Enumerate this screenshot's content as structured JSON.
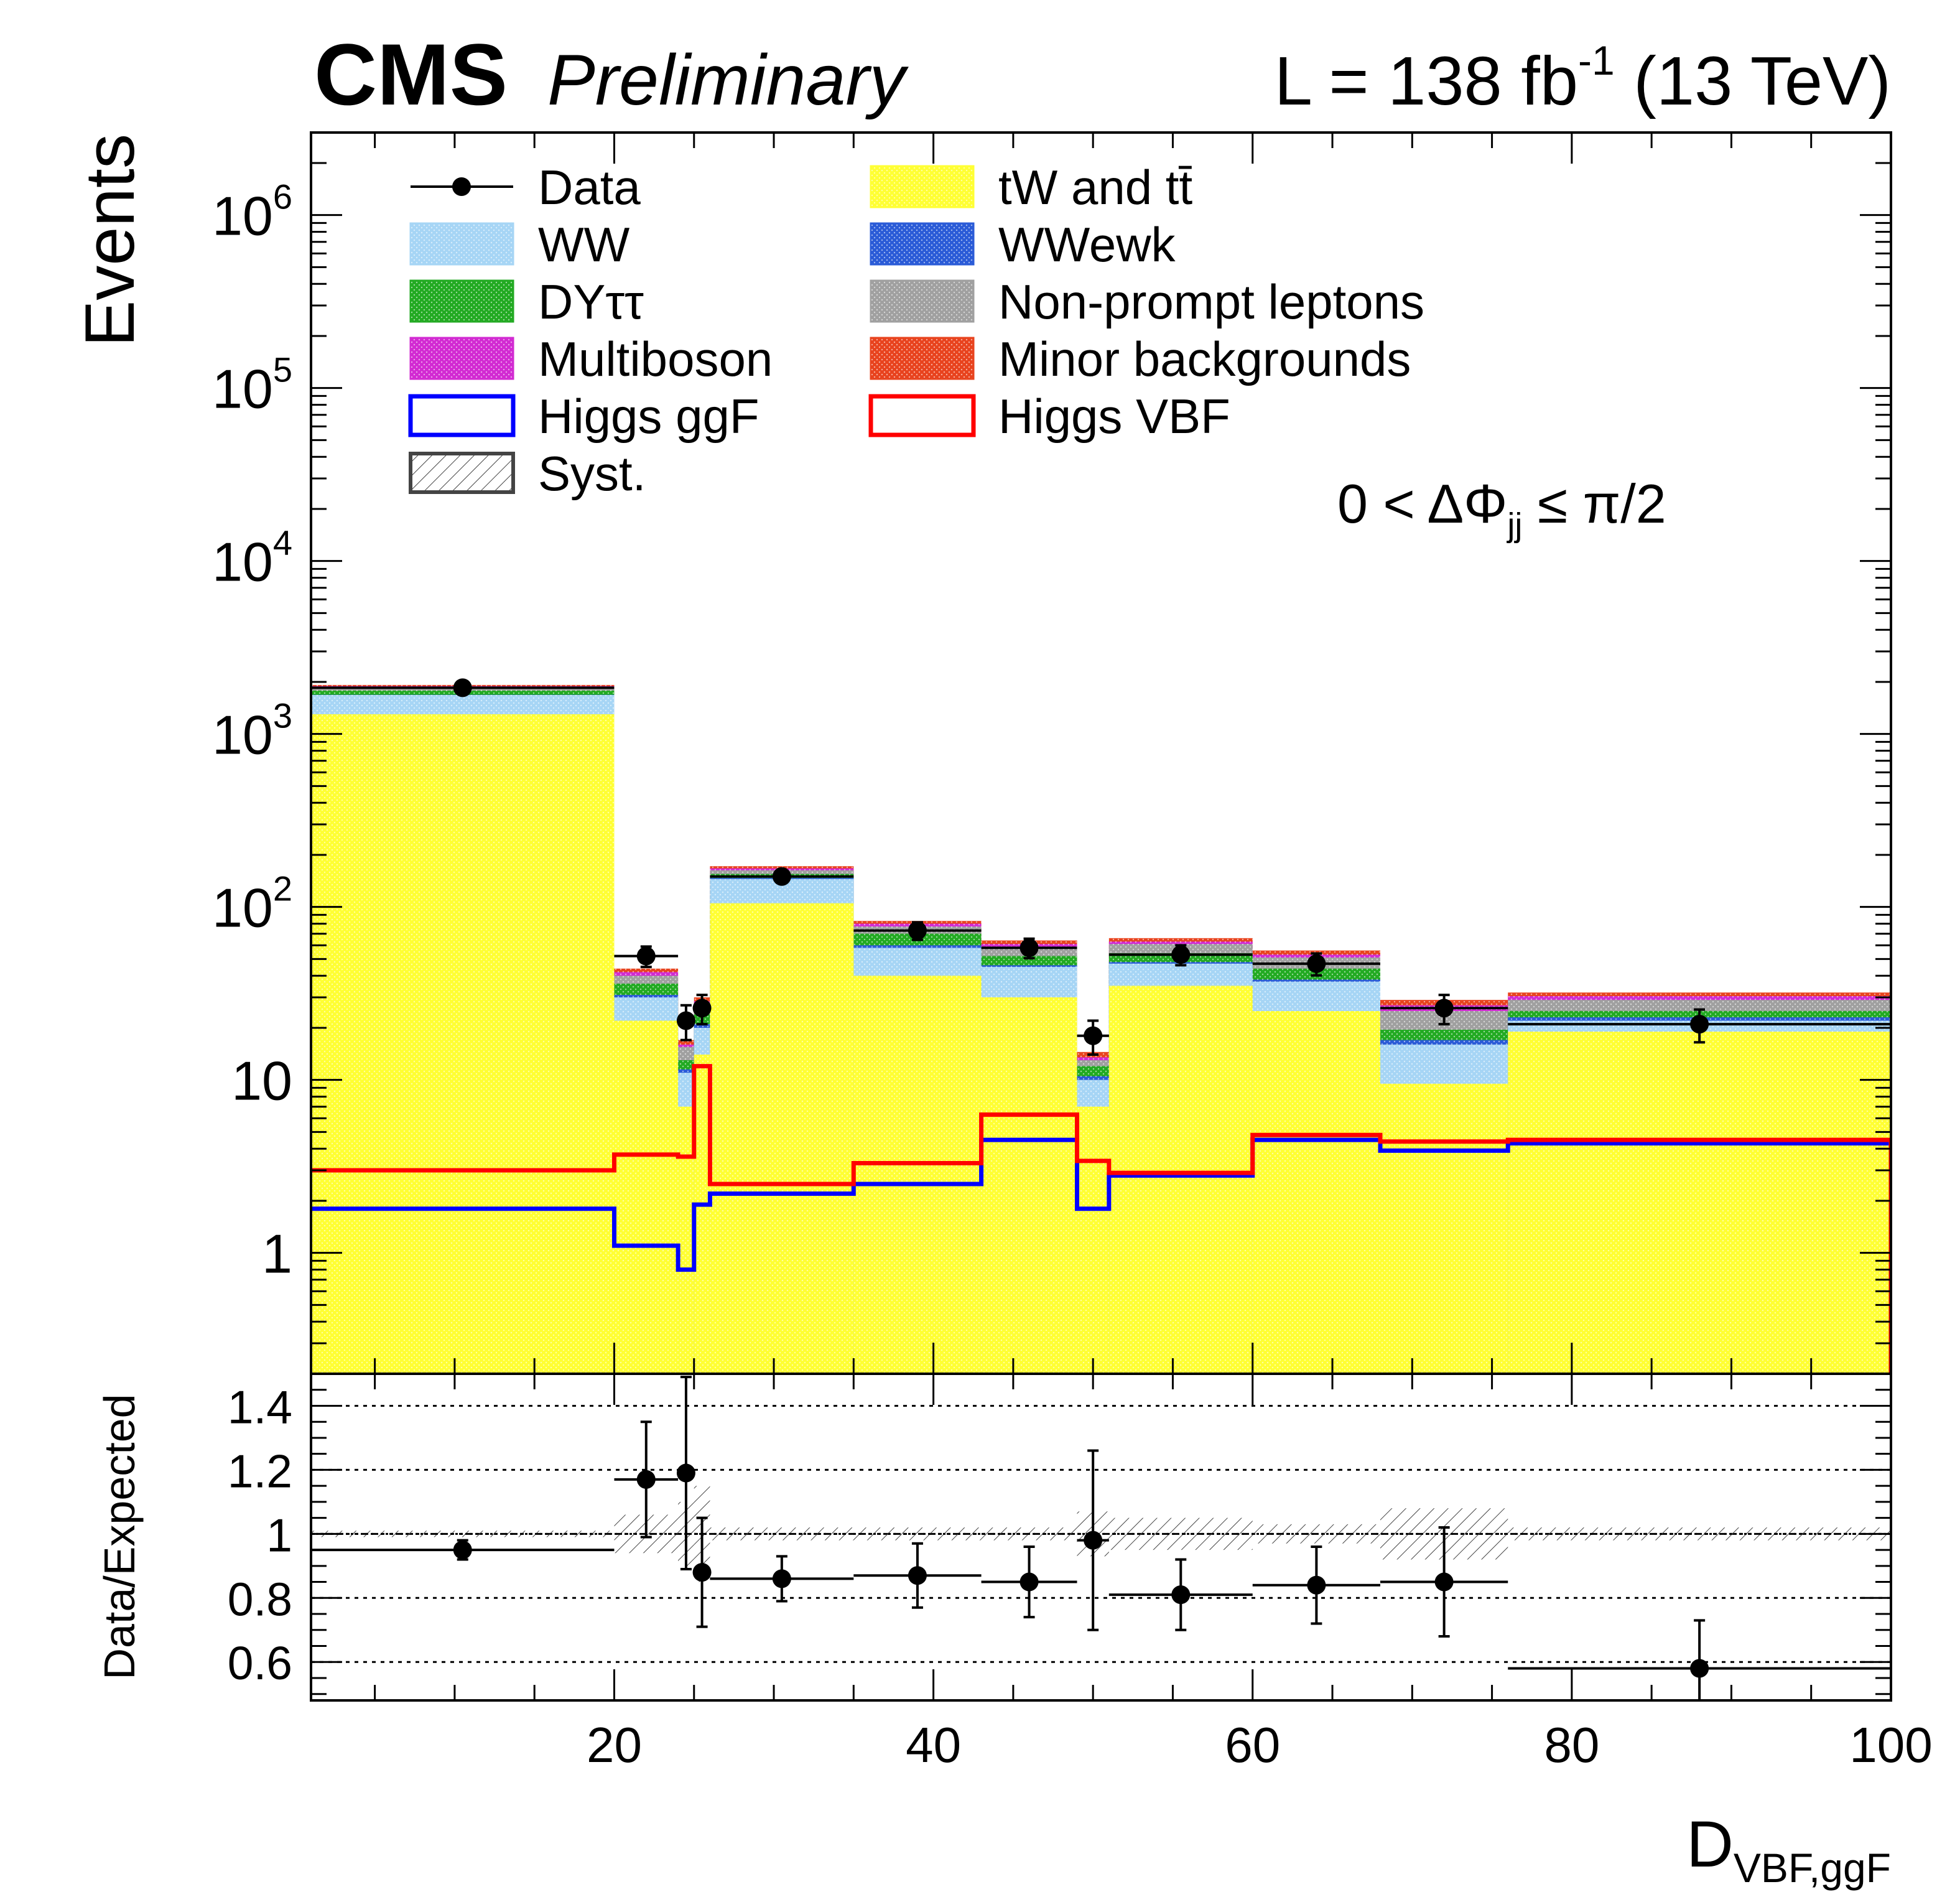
{
  "header": {
    "experiment": "CMS",
    "status": "Preliminary",
    "lumi_prefix": "L = 138 fb",
    "lumi_exp": "-1",
    "lumi_suffix": " (13 TeV)"
  },
  "annotation": {
    "main": "0 < ΔΦ",
    "sub": "jj",
    "tail": " ≤ π/2"
  },
  "colors": {
    "yellow": "#ffff33",
    "ww": "#a6d5f5",
    "wwewk": "#2a5bd7",
    "dy": "#22aa22",
    "nonprompt": "#a0a0a0",
    "multiboson": "#d22ad2",
    "minor": "#e8431e",
    "ggf": "#0000ff",
    "vbf": "#ff0000",
    "data": "#000000"
  },
  "legend": [
    {
      "label": "Data",
      "kind": "data",
      "color": "#000000"
    },
    {
      "label": "tW and tt̄",
      "kind": "fill",
      "color": "#ffff33"
    },
    {
      "label": "WW",
      "kind": "fill",
      "color": "#a6d5f5"
    },
    {
      "label": "WWewk",
      "kind": "fill",
      "color": "#2a5bd7"
    },
    {
      "label": "DYττ",
      "kind": "fill",
      "color": "#22aa22"
    },
    {
      "label": "Non-prompt leptons",
      "kind": "fill",
      "color": "#a0a0a0"
    },
    {
      "label": "Multiboson",
      "kind": "fill",
      "color": "#d22ad2"
    },
    {
      "label": "Minor backgrounds",
      "kind": "fill",
      "color": "#e8431e"
    },
    {
      "label": "Higgs ggF",
      "kind": "line",
      "color": "#0000ff"
    },
    {
      "label": "Higgs VBF",
      "kind": "line",
      "color": "#ff0000"
    },
    {
      "label": "Syst.",
      "kind": "hatch",
      "color": "#444444"
    }
  ],
  "chart_data": [
    {
      "type": "bar",
      "subtype": "stacked histogram",
      "ylabel": "Events",
      "yscale": "log",
      "ylim": [
        0.2,
        3000000
      ],
      "xlim": [
        1,
        100
      ],
      "ytick_labels": [
        {
          "v": 1,
          "base": "1",
          "exp": ""
        },
        {
          "v": 10,
          "base": "10",
          "exp": ""
        },
        {
          "v": 100,
          "base": "10",
          "exp": "2"
        },
        {
          "v": 1000,
          "base": "10",
          "exp": "3"
        },
        {
          "v": 10000,
          "base": "10",
          "exp": "4"
        },
        {
          "v": 100000,
          "base": "10",
          "exp": "5"
        },
        {
          "v": 1000000,
          "base": "10",
          "exp": "6"
        }
      ],
      "bin_edges": [
        1,
        20,
        24,
        25,
        26,
        35,
        43,
        49,
        51,
        60,
        68,
        76,
        100
      ],
      "stack": [
        {
          "name": "tW and tt̄",
          "color": "#ffff33",
          "values": [
            1300,
            22,
            7,
            14,
            105,
            40,
            30,
            7,
            35,
            25,
            9.5,
            19
          ]
        },
        {
          "name": "WW",
          "color": "#a6d5f5",
          "values": [
            1680,
            30,
            11,
            20,
            145,
            58,
            45,
            10,
            47,
            37,
            16,
            22
          ]
        },
        {
          "name": "WWewk",
          "color": "#2a5bd7",
          "values": [
            1685,
            31,
            11.5,
            21,
            147,
            60,
            46,
            10.5,
            48,
            38,
            17,
            23
          ]
        },
        {
          "name": "DYττ",
          "color": "#22aa22",
          "values": [
            1780,
            36,
            13,
            24,
            155,
            70,
            52,
            12,
            54,
            44,
            19.5,
            25
          ]
        },
        {
          "name": "Non-prompt leptons",
          "color": "#a0a0a0",
          "values": [
            1860,
            40,
            15.5,
            27,
            163,
            77,
            58,
            13,
            61,
            51,
            25,
            29
          ]
        },
        {
          "name": "Multiboson",
          "color": "#d22ad2",
          "values": [
            1890,
            42,
            16,
            28.5,
            167,
            80,
            61,
            13.5,
            63,
            53,
            27,
            30.5
          ]
        },
        {
          "name": "Minor backgrounds",
          "color": "#e8431e",
          "values": [
            1920,
            44,
            17,
            30,
            172,
            83,
            64,
            14.5,
            66,
            56,
            29,
            32
          ]
        }
      ],
      "overlays": [
        {
          "name": "Higgs ggF",
          "color": "#0000ff",
          "values": [
            1.8,
            1.1,
            0.8,
            1.9,
            2.2,
            2.5,
            4.5,
            1.8,
            2.8,
            4.5,
            3.9,
            4.3
          ]
        },
        {
          "name": "Higgs VBF",
          "color": "#ff0000",
          "values": [
            3.0,
            3.7,
            3.6,
            12,
            2.5,
            3.3,
            6.3,
            3.4,
            2.9,
            4.8,
            4.4,
            4.5
          ]
        }
      ],
      "data": {
        "name": "Data",
        "x": [
          10.5,
          22,
          24.5,
          25.5,
          30.5,
          39,
          46,
          50,
          55.5,
          64,
          72,
          88
        ],
        "xerr": [
          [
            9.5,
            2,
            0.5,
            0.5,
            4.5,
            4,
            3,
            1,
            4.5,
            4,
            4,
            12
          ],
          [
            9.5,
            2,
            0.5,
            0.5,
            4.5,
            4,
            3,
            1,
            4.5,
            4,
            4,
            12
          ]
        ],
        "y": [
          1850,
          52,
          22,
          26,
          150,
          73,
          58,
          18,
          53,
          47,
          26,
          21
        ],
        "yerr": [
          [
            43,
            7,
            5,
            5,
            12,
            8.5,
            7.5,
            4,
            7,
            6.8,
            5,
            4.5
          ],
          [
            43,
            7,
            5,
            5,
            12,
            8.5,
            7.5,
            4,
            7,
            6.8,
            5,
            4.5
          ]
        ]
      }
    },
    {
      "type": "scatter",
      "ylabel": "Data/Expected",
      "xlabel": "D",
      "xlabel_sub": "VBF,ggF",
      "xlim": [
        1,
        100
      ],
      "ylim": [
        0.48,
        1.5
      ],
      "xticks": [
        20,
        40,
        60,
        80,
        100
      ],
      "yticks": [
        0.6,
        0.8,
        1,
        1.2,
        1.4
      ],
      "ytick_labels": [
        "0.6",
        "0.8",
        "1",
        "1.2",
        "1.4"
      ],
      "gridlines": [
        0.6,
        0.8,
        1.0,
        1.2,
        1.4
      ],
      "x": [
        10.5,
        22,
        24.5,
        25.5,
        30.5,
        39,
        46,
        50,
        55.5,
        64,
        72,
        88
      ],
      "xerr": [
        9.5,
        2,
        0.5,
        0.5,
        4.5,
        4,
        3,
        1,
        4.5,
        4,
        4,
        12
      ],
      "y": [
        0.95,
        1.17,
        1.19,
        0.88,
        0.86,
        0.87,
        0.85,
        0.98,
        0.81,
        0.84,
        0.85,
        0.58
      ],
      "yerr": [
        0.03,
        0.18,
        0.3,
        0.17,
        0.07,
        0.1,
        0.11,
        0.28,
        0.11,
        0.12,
        0.17,
        0.15
      ],
      "syst_band": {
        "edges": [
          1,
          20,
          24,
          25,
          26,
          35,
          43,
          49,
          51,
          60,
          68,
          76,
          100
        ],
        "halfwidth": [
          0.01,
          0.06,
          0.1,
          0.15,
          0.02,
          0.02,
          0.02,
          0.07,
          0.05,
          0.03,
          0.08,
          0.02
        ]
      }
    }
  ]
}
